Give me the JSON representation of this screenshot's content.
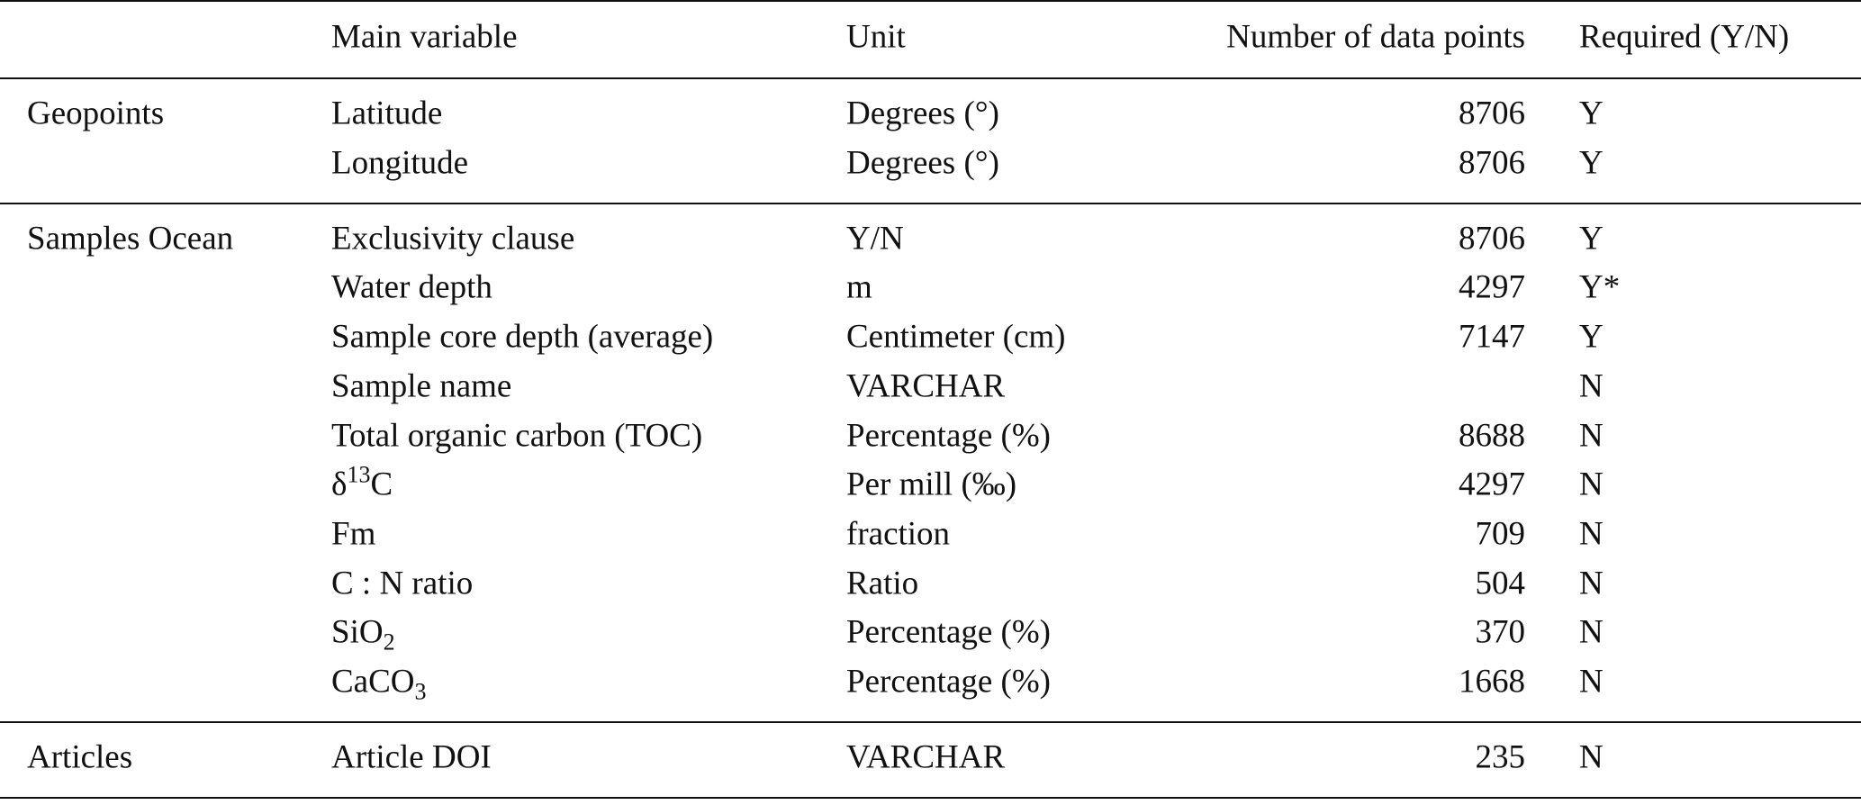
{
  "table": {
    "header": {
      "variable": "Main variable",
      "unit": "Unit",
      "data_points": "Number of data points",
      "required": "Required (Y/N)"
    },
    "groups": [
      {
        "name": "Geopoints",
        "rows": [
          {
            "variable": "Latitude",
            "unit": "Degrees (°)",
            "data_points": 8706,
            "required": "Y"
          },
          {
            "variable": "Longitude",
            "unit": "Degrees (°)",
            "data_points": 8706,
            "required": "Y"
          }
        ]
      },
      {
        "name": "Samples Ocean",
        "rows": [
          {
            "variable": "Exclusivity clause",
            "unit": "Y/N",
            "data_points": 8706,
            "required": "Y"
          },
          {
            "variable": "Water depth",
            "unit": "m",
            "data_points": 4297,
            "required": "Y*"
          },
          {
            "variable": "Sample core depth (average)",
            "unit": "Centimeter (cm)",
            "data_points": 7147,
            "required": "Y"
          },
          {
            "variable": "Sample name",
            "unit": "VARCHAR",
            "data_points": null,
            "required": "N"
          },
          {
            "variable": "Total organic carbon (TOC)",
            "unit": "Percentage (%)",
            "data_points": 8688,
            "required": "N"
          },
          {
            "variable": [
              {
                "text": "δ"
              },
              {
                "sup": "13"
              },
              {
                "text": "C"
              }
            ],
            "unit": "Per mill (‰)",
            "data_points": 4297,
            "required": "N"
          },
          {
            "variable": "Fm",
            "unit": "fraction",
            "data_points": 709,
            "required": "N"
          },
          {
            "variable": "C : N ratio",
            "unit": "Ratio",
            "data_points": 504,
            "required": "N"
          },
          {
            "variable": [
              {
                "text": "SiO"
              },
              {
                "sub": "2"
              }
            ],
            "unit": "Percentage (%)",
            "data_points": 370,
            "required": "N"
          },
          {
            "variable": [
              {
                "text": "CaCO"
              },
              {
                "sub": "3"
              }
            ],
            "unit": "Percentage (%)",
            "data_points": 1668,
            "required": "N"
          }
        ]
      },
      {
        "name": "Articles",
        "rows": [
          {
            "variable": "Article DOI",
            "unit": "VARCHAR",
            "data_points": 235,
            "required": "N"
          }
        ]
      }
    ]
  }
}
